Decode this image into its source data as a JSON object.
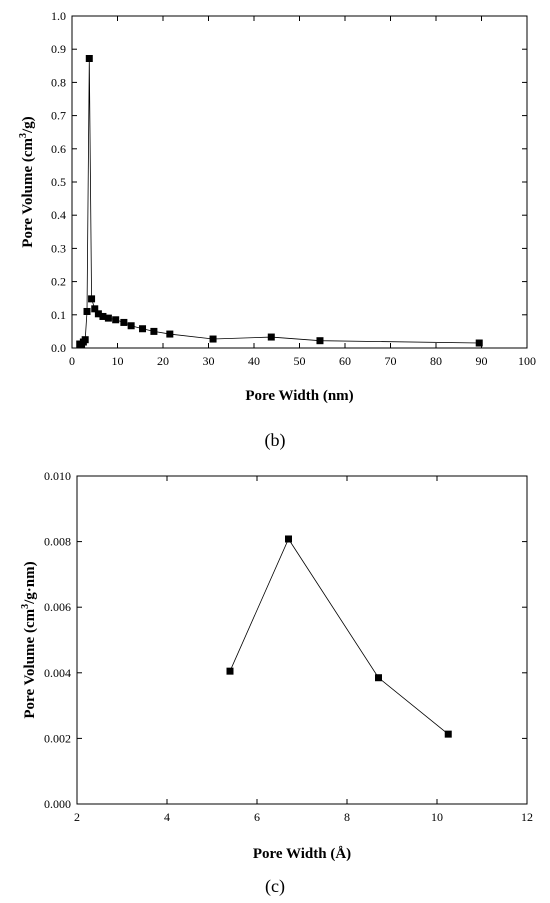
{
  "chart_data": [
    {
      "type": "scatter",
      "panel_label": "(b)",
      "xlabel": "Pore Width (nm)",
      "ylabel_main": "Pore Volume (cm",
      "ylabel_sup": "3",
      "ylabel_tail": "/g)",
      "xlim": [
        0,
        100
      ],
      "ylim": [
        0.0,
        1.0
      ],
      "x_ticks": [
        0,
        10,
        20,
        30,
        40,
        50,
        60,
        70,
        80,
        90,
        100
      ],
      "y_ticks": [
        0.0,
        0.1,
        0.2,
        0.3,
        0.4,
        0.5,
        0.6,
        0.7,
        0.8,
        0.9,
        1.0
      ],
      "x_tick_labels": [
        "0",
        "10",
        "20",
        "30",
        "40",
        "50",
        "60",
        "70",
        "80",
        "90",
        "100"
      ],
      "y_tick_labels": [
        "0.0",
        "0.1",
        "0.2",
        "0.3",
        "0.4",
        "0.5",
        "0.6",
        "0.7",
        "0.8",
        "0.9",
        "1.0"
      ],
      "grid": false,
      "series": [
        {
          "x": [
            1.7,
            2.1,
            2.5,
            2.9,
            3.3,
            3.8,
            4.3,
            5.0,
            5.8,
            6.8,
            8.0,
            9.6,
            11.4,
            13.0,
            15.5,
            18.0,
            21.5,
            31.0,
            43.8,
            54.5,
            89.5
          ],
          "y": [
            0.012,
            0.01,
            0.018,
            0.025,
            0.11,
            0.872,
            0.148,
            0.118,
            0.103,
            0.095,
            0.09,
            0.085,
            0.077,
            0.067,
            0.058,
            0.05,
            0.042,
            0.027,
            0.033,
            0.022,
            0.015
          ]
        }
      ],
      "color": "#000000"
    },
    {
      "type": "scatter",
      "panel_label": "(c)",
      "xlabel": "Pore Width (Å)",
      "ylabel_main": "Pore Volume (cm",
      "ylabel_sup": "3",
      "ylabel_tail": "/g·nm)",
      "xlim": [
        2,
        12
      ],
      "ylim": [
        0.0,
        0.01
      ],
      "x_ticks": [
        2,
        4,
        6,
        8,
        10,
        12
      ],
      "y_ticks": [
        0.0,
        0.002,
        0.004,
        0.006,
        0.008,
        0.01
      ],
      "x_tick_labels": [
        "2",
        "4",
        "6",
        "8",
        "10",
        "12"
      ],
      "y_tick_labels": [
        "0.000",
        "0.002",
        "0.004",
        "0.006",
        "0.008",
        "0.010"
      ],
      "grid": false,
      "series": [
        {
          "x": [
            5.4,
            6.7,
            8.7,
            10.25
          ],
          "y": [
            0.00405,
            0.00808,
            0.00385,
            0.00213
          ]
        }
      ],
      "color": "#000000"
    }
  ]
}
